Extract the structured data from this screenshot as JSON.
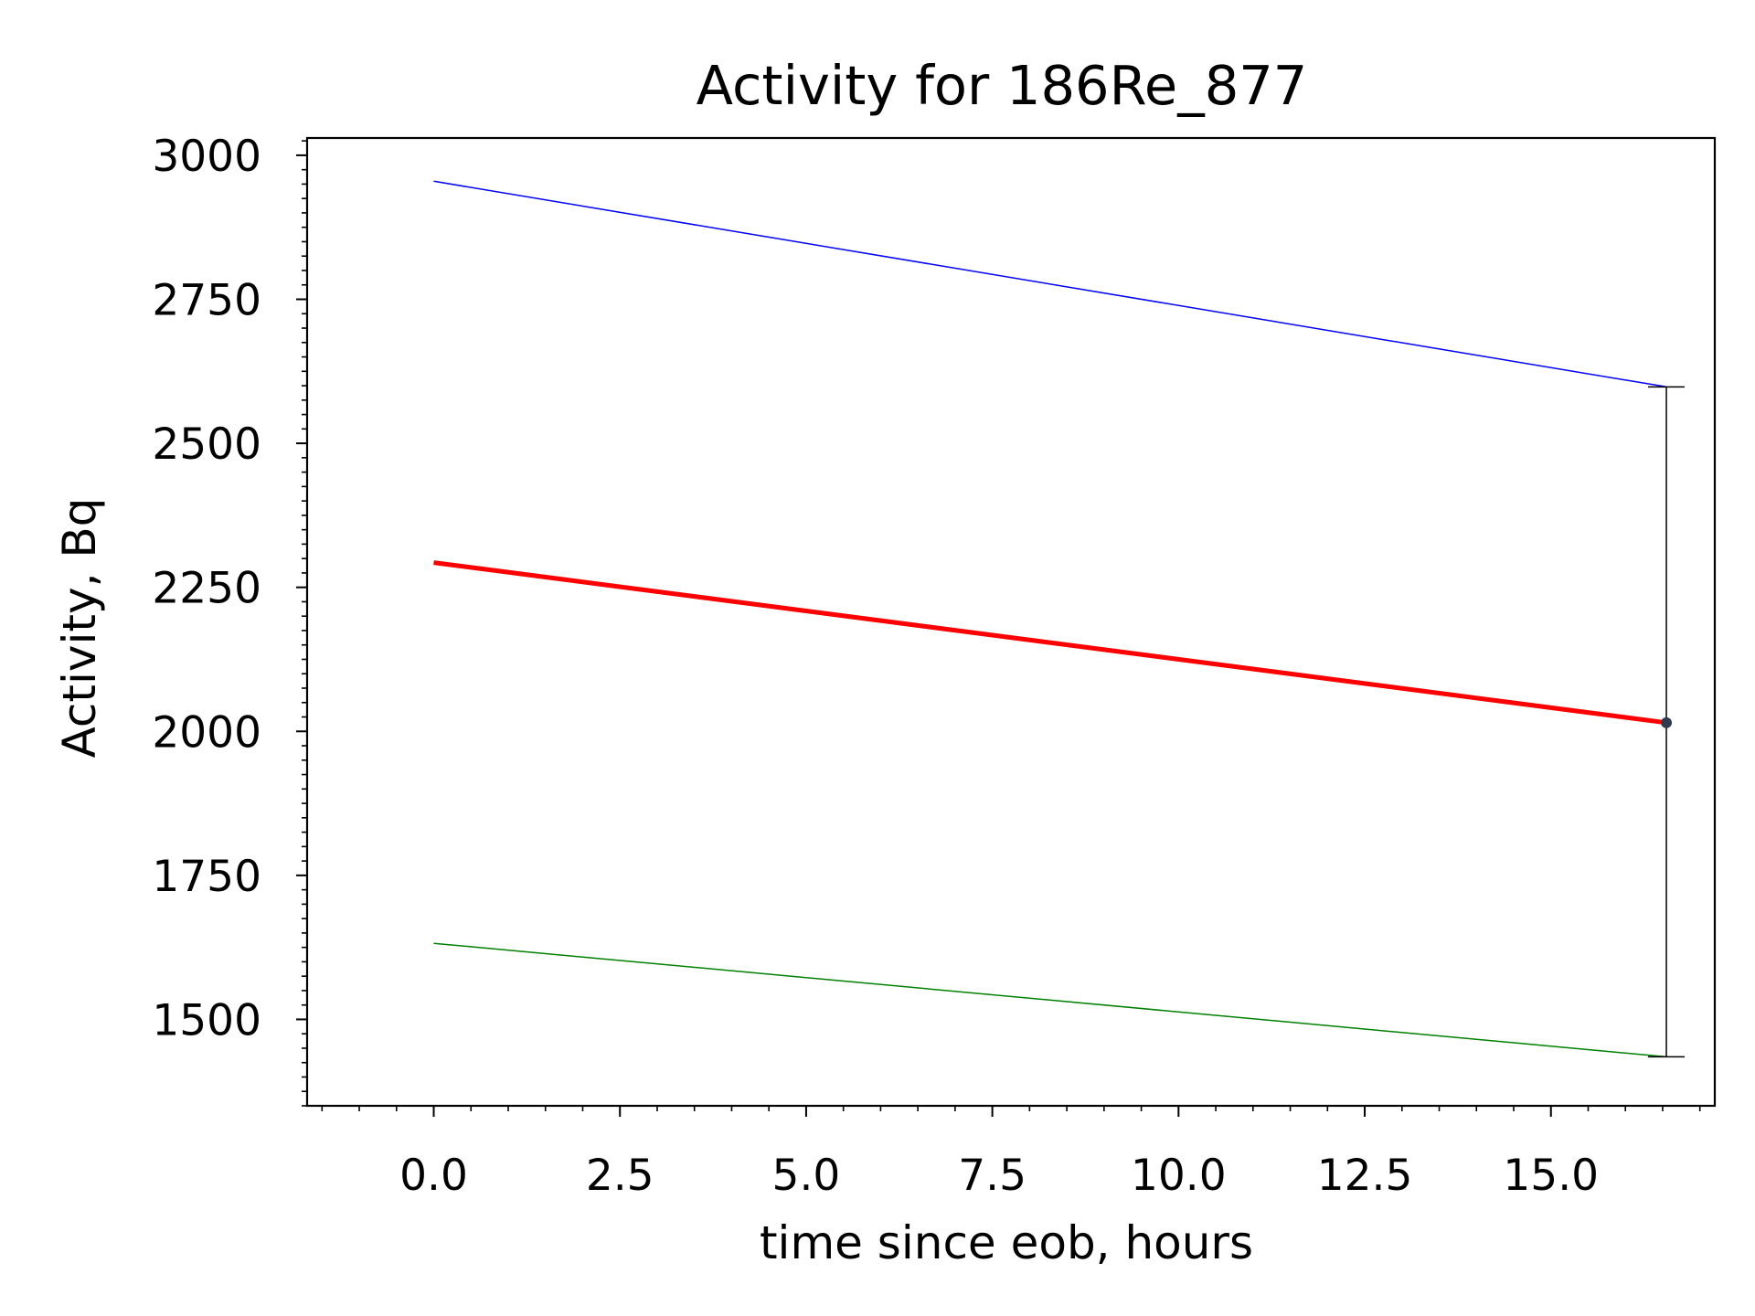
{
  "chart_data": {
    "type": "line",
    "title": "Activity for 186Re_877",
    "xlabel": "time since eob, hours",
    "ylabel": "Activity, Bq",
    "xlim": [
      -1.7,
      17.2
    ],
    "ylim": [
      1350,
      3030
    ],
    "x_ticks": [
      0.0,
      2.5,
      5.0,
      7.5,
      10.0,
      12.5,
      15.0
    ],
    "x_tick_labels": [
      "0.0",
      "2.5",
      "5.0",
      "7.5",
      "10.0",
      "12.5",
      "15.0"
    ],
    "y_ticks": [
      1500,
      1750,
      2000,
      2250,
      2500,
      2750,
      3000
    ],
    "y_tick_labels": [
      "1500",
      "1750",
      "2000",
      "2250",
      "2500",
      "2750",
      "3000"
    ],
    "grid": false,
    "series": [
      {
        "color": "#0000ff",
        "line_weight": "thin",
        "x": [
          0.0,
          16.55
        ],
        "y": [
          2955,
          2598
        ]
      },
      {
        "color": "#ff0000",
        "line_weight": "thick",
        "x": [
          0.0,
          16.55
        ],
        "y": [
          2293,
          2015
        ]
      },
      {
        "color": "#008000",
        "line_weight": "thin",
        "x": [
          0.0,
          16.55
        ],
        "y": [
          1632,
          1435
        ]
      }
    ],
    "error_bar": {
      "color": "#000000",
      "marker_color": "#2f3b4c",
      "x": 16.55,
      "y": 2015,
      "lower": 1435,
      "upper": 2598
    }
  }
}
